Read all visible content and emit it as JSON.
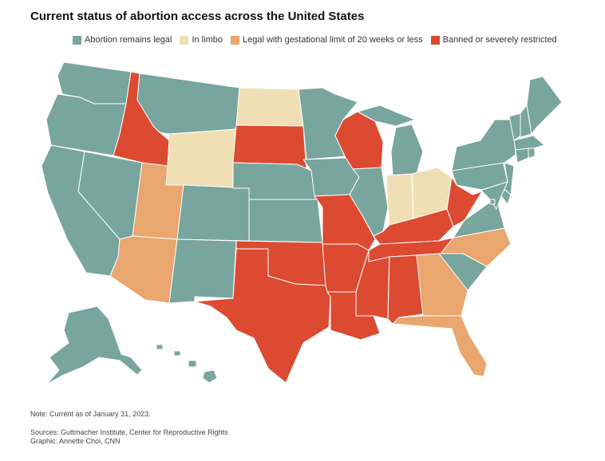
{
  "title": "Current status of abortion access across the United States",
  "legend": [
    {
      "key": "legal",
      "label": "Abortion remains legal",
      "color": "#78a59e"
    },
    {
      "key": "limbo",
      "label": "In limbo",
      "color": "#f0dfb4"
    },
    {
      "key": "limit",
      "label": "Legal with gestational limit of 20 weeks or less",
      "color": "#e9a66e"
    },
    {
      "key": "banned",
      "label": "Banned or severely restricted",
      "color": "#dc4a31"
    }
  ],
  "states": {
    "WA": "legal",
    "OR": "legal",
    "CA": "legal",
    "NV": "legal",
    "ID": "banned",
    "MT": "legal",
    "WY": "limbo",
    "UT": "limit",
    "AZ": "limit",
    "CO": "legal",
    "NM": "legal",
    "ND": "limbo",
    "SD": "banned",
    "NE": "legal",
    "KS": "legal",
    "OK": "banned",
    "TX": "banned",
    "MN": "legal",
    "IA": "legal",
    "MO": "banned",
    "AR": "banned",
    "LA": "banned",
    "WI": "banned",
    "IL": "legal",
    "MS": "banned",
    "MI": "legal",
    "IN": "limbo",
    "OH": "limbo",
    "KY": "banned",
    "TN": "banned",
    "AL": "banned",
    "GA": "limit",
    "FL": "limit",
    "SC": "legal",
    "NC": "limit",
    "VA": "legal",
    "WV": "banned",
    "PA": "legal",
    "NY": "legal",
    "VT": "legal",
    "NH": "legal",
    "ME": "legal",
    "MA": "legal",
    "CT": "legal",
    "RI": "legal",
    "NJ": "legal",
    "DE": "legal",
    "MD": "legal",
    "DC": "legal",
    "AK": "legal",
    "HI": "legal"
  },
  "note": "Note: Current as of January 31, 2023.",
  "sources": "Sources: Guttmacher Institute, Center for Reproductive Rights",
  "credit": "Graphic: Annette Choi, CNN"
}
